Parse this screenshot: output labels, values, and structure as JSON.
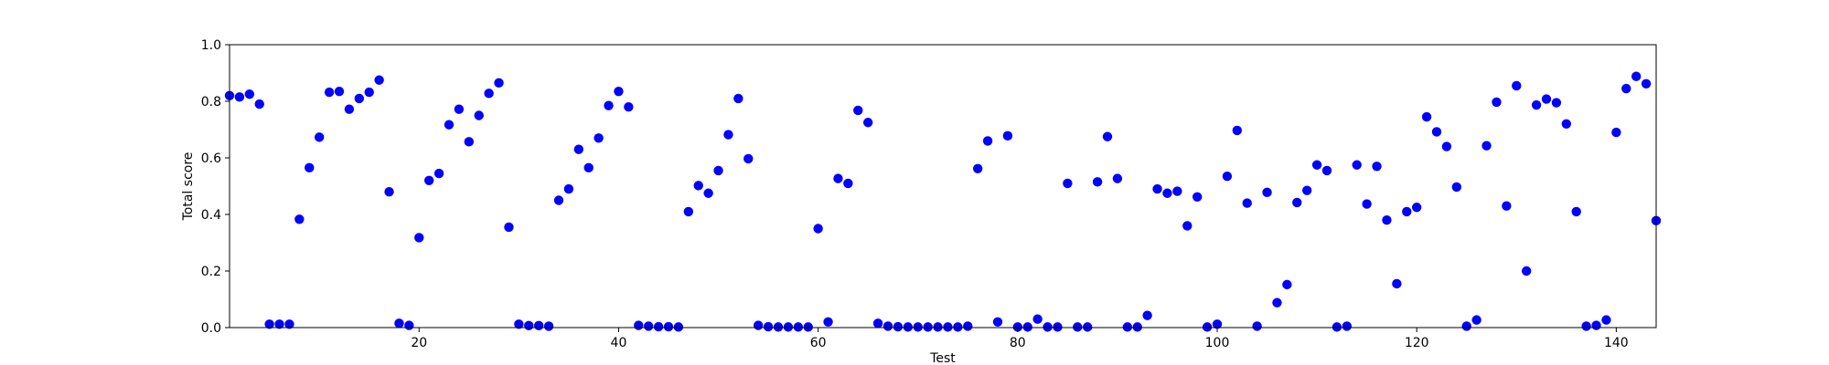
{
  "colors": {
    "point": "#0000ff",
    "axis": "#000000",
    "background": "#ffffff"
  },
  "chart_data": {
    "type": "scatter",
    "title": "",
    "xlabel": "Test",
    "ylabel": "Total score",
    "xlim": [
      1,
      144
    ],
    "ylim": [
      0.0,
      1.0
    ],
    "grid": false,
    "x_ticks": [
      20,
      40,
      60,
      80,
      100,
      120,
      140
    ],
    "y_ticks": [
      "0.0",
      "0.2",
      "0.4",
      "0.6",
      "0.8",
      "1.0"
    ],
    "points": [
      {
        "x": 1,
        "y": 0.82
      },
      {
        "x": 2,
        "y": 0.815
      },
      {
        "x": 3,
        "y": 0.825
      },
      {
        "x": 4,
        "y": 0.79
      },
      {
        "x": 5,
        "y": 0.012
      },
      {
        "x": 6,
        "y": 0.012
      },
      {
        "x": 7,
        "y": 0.012
      },
      {
        "x": 8,
        "y": 0.383
      },
      {
        "x": 9,
        "y": 0.565
      },
      {
        "x": 10,
        "y": 0.673
      },
      {
        "x": 11,
        "y": 0.832
      },
      {
        "x": 12,
        "y": 0.835
      },
      {
        "x": 13,
        "y": 0.772
      },
      {
        "x": 14,
        "y": 0.81
      },
      {
        "x": 15,
        "y": 0.832
      },
      {
        "x": 16,
        "y": 0.875
      },
      {
        "x": 17,
        "y": 0.48
      },
      {
        "x": 18,
        "y": 0.015
      },
      {
        "x": 19,
        "y": 0.008
      },
      {
        "x": 20,
        "y": 0.318
      },
      {
        "x": 21,
        "y": 0.52
      },
      {
        "x": 22,
        "y": 0.545
      },
      {
        "x": 23,
        "y": 0.717
      },
      {
        "x": 24,
        "y": 0.772
      },
      {
        "x": 25,
        "y": 0.657
      },
      {
        "x": 26,
        "y": 0.75
      },
      {
        "x": 27,
        "y": 0.828
      },
      {
        "x": 28,
        "y": 0.865
      },
      {
        "x": 29,
        "y": 0.355
      },
      {
        "x": 30,
        "y": 0.012
      },
      {
        "x": 31,
        "y": 0.007
      },
      {
        "x": 32,
        "y": 0.007
      },
      {
        "x": 33,
        "y": 0.005
      },
      {
        "x": 34,
        "y": 0.45
      },
      {
        "x": 35,
        "y": 0.49
      },
      {
        "x": 36,
        "y": 0.63
      },
      {
        "x": 37,
        "y": 0.565
      },
      {
        "x": 38,
        "y": 0.67
      },
      {
        "x": 39,
        "y": 0.785
      },
      {
        "x": 40,
        "y": 0.835
      },
      {
        "x": 41,
        "y": 0.78
      },
      {
        "x": 42,
        "y": 0.008
      },
      {
        "x": 43,
        "y": 0.005
      },
      {
        "x": 44,
        "y": 0.003
      },
      {
        "x": 45,
        "y": 0.003
      },
      {
        "x": 46,
        "y": 0.002
      },
      {
        "x": 47,
        "y": 0.41
      },
      {
        "x": 48,
        "y": 0.502
      },
      {
        "x": 49,
        "y": 0.475
      },
      {
        "x": 50,
        "y": 0.555
      },
      {
        "x": 51,
        "y": 0.682
      },
      {
        "x": 52,
        "y": 0.81
      },
      {
        "x": 53,
        "y": 0.597
      },
      {
        "x": 54,
        "y": 0.008
      },
      {
        "x": 55,
        "y": 0.003
      },
      {
        "x": 56,
        "y": 0.002
      },
      {
        "x": 57,
        "y": 0.002
      },
      {
        "x": 58,
        "y": 0.002
      },
      {
        "x": 59,
        "y": 0.002
      },
      {
        "x": 60,
        "y": 0.35
      },
      {
        "x": 61,
        "y": 0.02
      },
      {
        "x": 62,
        "y": 0.527
      },
      {
        "x": 63,
        "y": 0.51
      },
      {
        "x": 64,
        "y": 0.768
      },
      {
        "x": 65,
        "y": 0.725
      },
      {
        "x": 66,
        "y": 0.015
      },
      {
        "x": 67,
        "y": 0.005
      },
      {
        "x": 68,
        "y": 0.003
      },
      {
        "x": 69,
        "y": 0.002
      },
      {
        "x": 70,
        "y": 0.002
      },
      {
        "x": 71,
        "y": 0.002
      },
      {
        "x": 72,
        "y": 0.002
      },
      {
        "x": 73,
        "y": 0.002
      },
      {
        "x": 74,
        "y": 0.002
      },
      {
        "x": 75,
        "y": 0.005
      },
      {
        "x": 76,
        "y": 0.562
      },
      {
        "x": 77,
        "y": 0.66
      },
      {
        "x": 78,
        "y": 0.02
      },
      {
        "x": 79,
        "y": 0.678
      },
      {
        "x": 80,
        "y": 0.002
      },
      {
        "x": 81,
        "y": 0.002
      },
      {
        "x": 82,
        "y": 0.03
      },
      {
        "x": 83,
        "y": 0.002
      },
      {
        "x": 84,
        "y": 0.002
      },
      {
        "x": 85,
        "y": 0.51
      },
      {
        "x": 86,
        "y": 0.002
      },
      {
        "x": 87,
        "y": 0.002
      },
      {
        "x": 88,
        "y": 0.515
      },
      {
        "x": 89,
        "y": 0.675
      },
      {
        "x": 90,
        "y": 0.527
      },
      {
        "x": 91,
        "y": 0.002
      },
      {
        "x": 92,
        "y": 0.002
      },
      {
        "x": 93,
        "y": 0.043
      },
      {
        "x": 94,
        "y": 0.49
      },
      {
        "x": 95,
        "y": 0.475
      },
      {
        "x": 96,
        "y": 0.482
      },
      {
        "x": 97,
        "y": 0.36
      },
      {
        "x": 98,
        "y": 0.462
      },
      {
        "x": 99,
        "y": 0.002
      },
      {
        "x": 100,
        "y": 0.012
      },
      {
        "x": 101,
        "y": 0.535
      },
      {
        "x": 102,
        "y": 0.697
      },
      {
        "x": 103,
        "y": 0.44
      },
      {
        "x": 104,
        "y": 0.005
      },
      {
        "x": 105,
        "y": 0.478
      },
      {
        "x": 106,
        "y": 0.088
      },
      {
        "x": 107,
        "y": 0.152
      },
      {
        "x": 108,
        "y": 0.442
      },
      {
        "x": 109,
        "y": 0.485
      },
      {
        "x": 110,
        "y": 0.575
      },
      {
        "x": 111,
        "y": 0.555
      },
      {
        "x": 112,
        "y": 0.002
      },
      {
        "x": 113,
        "y": 0.005
      },
      {
        "x": 114,
        "y": 0.575
      },
      {
        "x": 115,
        "y": 0.437
      },
      {
        "x": 116,
        "y": 0.57
      },
      {
        "x": 117,
        "y": 0.38
      },
      {
        "x": 118,
        "y": 0.155
      },
      {
        "x": 119,
        "y": 0.41
      },
      {
        "x": 120,
        "y": 0.425
      },
      {
        "x": 121,
        "y": 0.745
      },
      {
        "x": 122,
        "y": 0.692
      },
      {
        "x": 123,
        "y": 0.64
      },
      {
        "x": 124,
        "y": 0.497
      },
      {
        "x": 125,
        "y": 0.005
      },
      {
        "x": 126,
        "y": 0.027
      },
      {
        "x": 127,
        "y": 0.643
      },
      {
        "x": 128,
        "y": 0.797
      },
      {
        "x": 129,
        "y": 0.43
      },
      {
        "x": 130,
        "y": 0.855
      },
      {
        "x": 131,
        "y": 0.2
      },
      {
        "x": 132,
        "y": 0.787
      },
      {
        "x": 133,
        "y": 0.808
      },
      {
        "x": 134,
        "y": 0.795
      },
      {
        "x": 135,
        "y": 0.72
      },
      {
        "x": 136,
        "y": 0.41
      },
      {
        "x": 137,
        "y": 0.005
      },
      {
        "x": 138,
        "y": 0.008
      },
      {
        "x": 139,
        "y": 0.027
      },
      {
        "x": 140,
        "y": 0.69
      },
      {
        "x": 141,
        "y": 0.845
      },
      {
        "x": 142,
        "y": 0.888
      },
      {
        "x": 143,
        "y": 0.862
      },
      {
        "x": 144,
        "y": 0.378
      }
    ]
  }
}
